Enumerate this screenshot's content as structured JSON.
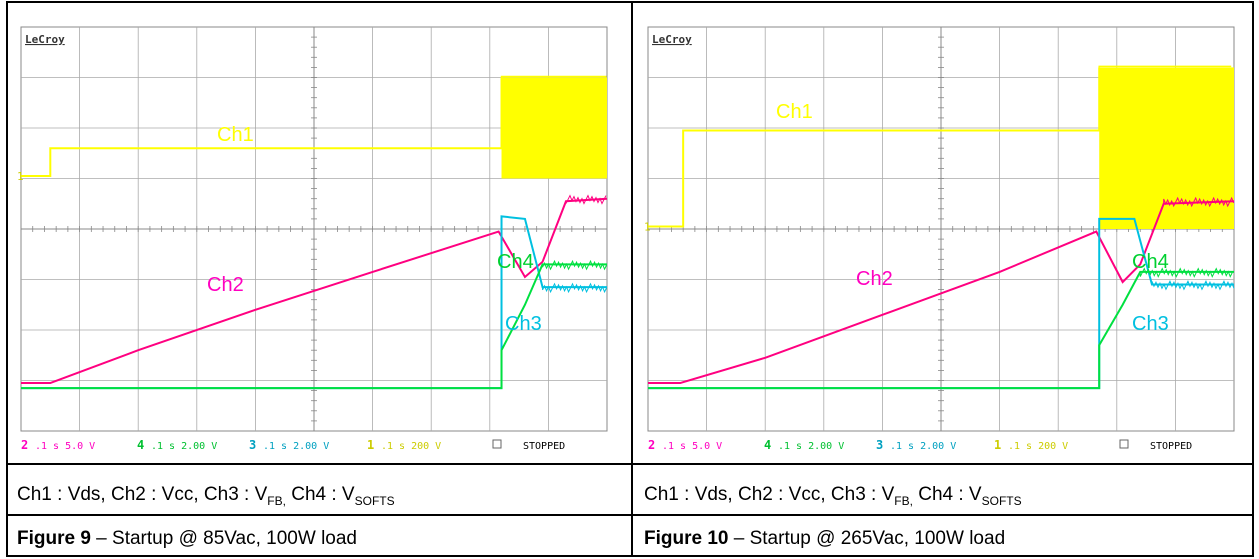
{
  "figures": [
    {
      "brand": "LeCroy",
      "channel_labels": {
        "ch1": "Ch1",
        "ch2": "Ch2",
        "ch3": "Ch3",
        "ch4": "Ch4"
      },
      "status": {
        "ch2": ".1 s 5.0 V",
        "ch2_num": "2",
        "ch4": ".1 s 2.00 V",
        "ch4_num": "4",
        "ch3": ".1 s 2.00 V",
        "ch3_num": "3",
        "ch1": ".1 s 200 V",
        "ch1_num": "1",
        "state": "STOPPED"
      },
      "caption_parts": {
        "pre": "Ch1 : Vds, Ch2 : Vcc, Ch3 : V",
        "fb_sub": "FB,",
        "mid": " Ch4 : V",
        "softs_sub": "SOFTS"
      },
      "figure_label": "Figure 9",
      "figure_text": " – Startup @ 85Vac, 100W load"
    },
    {
      "brand": "LeCroy",
      "channel_labels": {
        "ch1": "Ch1",
        "ch2": "Ch2",
        "ch3": "Ch3",
        "ch4": "Ch4"
      },
      "status": {
        "ch2": ".1 s 5.0 V",
        "ch2_num": "2",
        "ch4": ".1 s 2.00 V",
        "ch4_num": "4",
        "ch3": ".1 s 2.00 V",
        "ch3_num": "3",
        "ch1": ".1 s 200 V",
        "ch1_num": "1",
        "state": "STOPPED"
      },
      "caption_parts": {
        "pre": "Ch1 : Vds, Ch2 : Vcc, Ch3 : V",
        "fb_sub": "FB,",
        "mid": " Ch4 : V",
        "softs_sub": "SOFTS"
      },
      "figure_label": "Figure 10",
      "figure_text": " – Startup @ 265Vac, 100W load"
    }
  ],
  "chart_data": [
    {
      "type": "line",
      "title": "",
      "xlabel": "",
      "ylabel": "",
      "x_divisions": 10,
      "y_divisions": 8,
      "series": [
        {
          "name": "Ch1",
          "color": "#ffff00",
          "x": [
            0,
            0.5,
            0.5,
            8.2,
            8.2,
            10
          ],
          "y": [
            1.05,
            1.05,
            1.6,
            1.6,
            3.0,
            3.0
          ],
          "envelope_low_after_x": 8.2,
          "envelope_low": 1.0
        },
        {
          "name": "Ch2",
          "color": "#ff0080",
          "x": [
            0,
            0.5,
            2.0,
            4.0,
            6.0,
            8.15,
            8.6,
            8.9,
            9.3,
            10
          ],
          "y": [
            -3.05,
            -3.05,
            -2.4,
            -1.6,
            -0.85,
            -0.05,
            -0.95,
            -0.65,
            0.55,
            0.6
          ]
        },
        {
          "name": "Ch3",
          "color": "#00c0e0",
          "x": [
            0,
            8.2,
            8.2,
            8.6,
            8.9,
            10
          ],
          "y": [
            -3.15,
            -3.15,
            0.25,
            0.2,
            -1.15,
            -1.15
          ]
        },
        {
          "name": "Ch4",
          "color": "#00e040",
          "x": [
            0,
            8.2,
            8.2,
            8.6,
            8.9,
            10
          ],
          "y": [
            -3.15,
            -3.15,
            -2.4,
            -1.5,
            -0.7,
            -0.7
          ]
        }
      ]
    },
    {
      "type": "line",
      "title": "",
      "xlabel": "",
      "ylabel": "",
      "x_divisions": 10,
      "y_divisions": 8,
      "series": [
        {
          "name": "Ch1",
          "color": "#ffff00",
          "x": [
            0,
            0.6,
            0.6,
            7.7,
            7.7,
            10
          ],
          "y": [
            0.05,
            0.05,
            1.95,
            1.95,
            3.2,
            3.2
          ],
          "envelope_low_after_x": 7.7,
          "envelope_low": 0.0
        },
        {
          "name": "Ch2",
          "color": "#ff0080",
          "x": [
            0,
            0.55,
            2.0,
            4.0,
            6.0,
            7.65,
            8.1,
            8.4,
            8.8,
            10
          ],
          "y": [
            -3.05,
            -3.05,
            -2.55,
            -1.7,
            -0.85,
            -0.05,
            -1.05,
            -0.7,
            0.5,
            0.55
          ]
        },
        {
          "name": "Ch3",
          "color": "#00c0e0",
          "x": [
            0,
            7.7,
            7.7,
            8.3,
            8.6,
            10
          ],
          "y": [
            -3.15,
            -3.15,
            0.2,
            0.2,
            -1.1,
            -1.1
          ]
        },
        {
          "name": "Ch4",
          "color": "#00e040",
          "x": [
            0,
            7.7,
            7.7,
            8.1,
            8.4,
            10
          ],
          "y": [
            -3.15,
            -3.15,
            -2.3,
            -1.5,
            -0.85,
            -0.85
          ]
        }
      ]
    }
  ]
}
